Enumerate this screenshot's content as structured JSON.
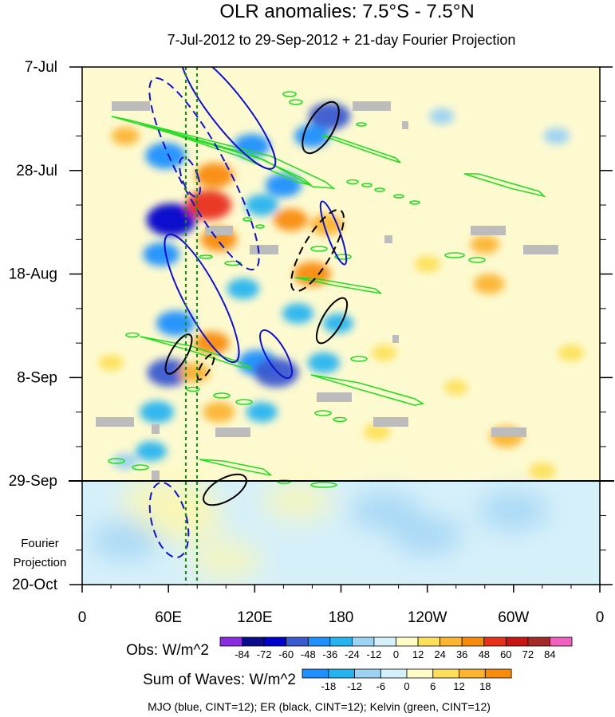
{
  "chart_data": {
    "type": "heatmap",
    "title": "OLR anomalies: 7.5°S - 7.5°N",
    "subtitle": "7-Jul-2012 to 29-Sep-2012 + 21-day Fourier Projection",
    "x_axis": {
      "ticks": [
        {
          "lon": 0,
          "label": "0"
        },
        {
          "lon": 60,
          "label": "60E"
        },
        {
          "lon": 120,
          "label": "120E"
        },
        {
          "lon": 180,
          "label": "180"
        },
        {
          "lon": 240,
          "label": "120W"
        },
        {
          "lon": 300,
          "label": "60W"
        },
        {
          "lon": 360,
          "label": "0"
        }
      ],
      "range": [
        0,
        360
      ]
    },
    "y_axis": {
      "ticks": [
        {
          "day": 0,
          "label": "7-Jul"
        },
        {
          "day": 21,
          "label": "28-Jul"
        },
        {
          "day": 42,
          "label": "18-Aug"
        },
        {
          "day": 63,
          "label": "8-Sep"
        },
        {
          "day": 84,
          "label": "29-Sep"
        },
        {
          "day": 105,
          "label": "20-Oct"
        }
      ],
      "range_days": [
        0,
        105
      ],
      "observation_end_day": 84
    },
    "projection_label": "Fourier Projection",
    "reference_lines_lon": [
      72,
      80
    ],
    "obs_colorbar": {
      "label": "Obs: W/m^2",
      "levels": [
        "-84",
        "-72",
        "-60",
        "-48",
        "-36",
        "-24",
        "-12",
        "0",
        "12",
        "24",
        "36",
        "48",
        "60",
        "72",
        "84"
      ],
      "colors": [
        "#8a2be2",
        "#0a0a8c",
        "#0000cd",
        "#3a5ad0",
        "#1e90ff",
        "#26b4f0",
        "#9cd2f4",
        "#d4f0fa",
        "#fffcc6",
        "#fde059",
        "#fcb431",
        "#f98b0b",
        "#e8301a",
        "#c81414",
        "#a52a2a",
        "#f060c0"
      ]
    },
    "waves_colorbar": {
      "label": "Sum of Waves: W/m^2",
      "levels": [
        "-18",
        "-12",
        "-6",
        "0",
        "6",
        "12",
        "18"
      ],
      "colors": [
        "#1e90ff",
        "#26b4f0",
        "#9cd2f4",
        "#d4f0fa",
        "#fffcc6",
        "#fde059",
        "#fcb431",
        "#f98b0b"
      ]
    },
    "wave_legend": "MJO (blue, CINT=12); ER (black, CINT=12); Kelvin (green, CINT=12)",
    "contour_series": [
      {
        "name": "MJO",
        "color": "#1010d0"
      },
      {
        "name": "ER",
        "color": "#000000"
      },
      {
        "name": "Kelvin",
        "color": "#22dd22"
      }
    ],
    "anomaly_blobs": [
      {
        "lon": 58,
        "day": 18,
        "v": -48
      },
      {
        "lon": 62,
        "day": 31,
        "v": -66
      },
      {
        "lon": 55,
        "day": 38,
        "v": -40
      },
      {
        "lon": 65,
        "day": 52,
        "v": -44
      },
      {
        "lon": 60,
        "day": 62,
        "v": -52
      },
      {
        "lon": 52,
        "day": 70,
        "v": -36
      },
      {
        "lon": 48,
        "day": 78,
        "v": -30
      },
      {
        "lon": 92,
        "day": 22,
        "v": 44
      },
      {
        "lon": 88,
        "day": 28,
        "v": 58
      },
      {
        "lon": 95,
        "day": 35,
        "v": 40
      },
      {
        "lon": 90,
        "day": 56,
        "v": 38
      },
      {
        "lon": 78,
        "day": 62,
        "v": 30
      },
      {
        "lon": 95,
        "day": 70,
        "v": 32
      },
      {
        "lon": 118,
        "day": 16,
        "v": -40
      },
      {
        "lon": 125,
        "day": 28,
        "v": -34
      },
      {
        "lon": 112,
        "day": 45,
        "v": -32
      },
      {
        "lon": 122,
        "day": 60,
        "v": -46
      },
      {
        "lon": 135,
        "day": 62,
        "v": -56
      },
      {
        "lon": 125,
        "day": 70,
        "v": -30
      },
      {
        "lon": 140,
        "day": 24,
        "v": -40
      },
      {
        "lon": 145,
        "day": 31,
        "v": 36
      },
      {
        "lon": 150,
        "day": 50,
        "v": -30
      },
      {
        "lon": 160,
        "day": 42,
        "v": 42
      },
      {
        "lon": 170,
        "day": 32,
        "v": 34
      },
      {
        "lon": 172,
        "day": 10,
        "v": -50
      },
      {
        "lon": 160,
        "day": 14,
        "v": -38
      },
      {
        "lon": 168,
        "day": 60,
        "v": -32
      },
      {
        "lon": 178,
        "day": 52,
        "v": -28
      },
      {
        "lon": 205,
        "day": 74,
        "v": 22
      },
      {
        "lon": 240,
        "day": 40,
        "v": 20
      },
      {
        "lon": 280,
        "day": 36,
        "v": 26
      },
      {
        "lon": 283,
        "day": 44,
        "v": 30
      },
      {
        "lon": 295,
        "day": 75,
        "v": 34
      },
      {
        "lon": 320,
        "day": 82,
        "v": 22
      },
      {
        "lon": 30,
        "day": 14,
        "v": 24
      },
      {
        "lon": 20,
        "day": 60,
        "v": 18
      },
      {
        "lon": 30,
        "day": 80,
        "v": -20
      },
      {
        "lon": 250,
        "day": 10,
        "v": -18
      },
      {
        "lon": 330,
        "day": 14,
        "v": -20
      },
      {
        "lon": 210,
        "day": 58,
        "v": 18
      },
      {
        "lon": 260,
        "day": 65,
        "v": 16
      },
      {
        "lon": 340,
        "day": 58,
        "v": 20
      },
      {
        "lon": 60,
        "day": 88,
        "v": 16
      },
      {
        "lon": 70,
        "day": 92,
        "v": 10
      },
      {
        "lon": 150,
        "day": 88,
        "v": 6
      },
      {
        "lon": 210,
        "day": 90,
        "v": -6
      },
      {
        "lon": 240,
        "day": 95,
        "v": -6
      },
      {
        "lon": 300,
        "day": 90,
        "v": -6
      },
      {
        "lon": 30,
        "day": 96,
        "v": -6
      },
      {
        "lon": 100,
        "day": 100,
        "v": 6
      }
    ]
  }
}
